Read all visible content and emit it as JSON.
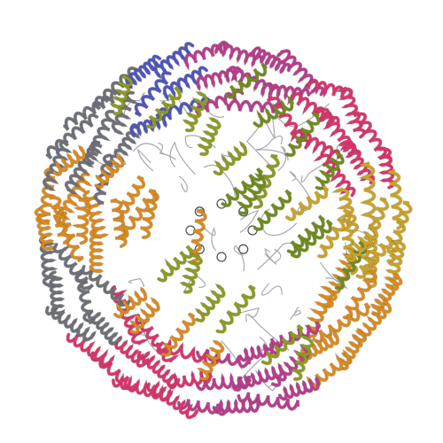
{
  "image": {
    "subject": "protein-cage-ribbon-structure",
    "background": "#ffffff",
    "palette": {
      "gray": "#6e7078",
      "pink": "#d8356a",
      "magenta": "#b83d8c",
      "orange": "#d98a1f",
      "gold": "#c9a227",
      "olive": "#8c9a22",
      "green": "#6f8b1e",
      "blue": "#4f56b8",
      "violet": "#7a54a8",
      "coil": "#9a9aa2"
    }
  }
}
